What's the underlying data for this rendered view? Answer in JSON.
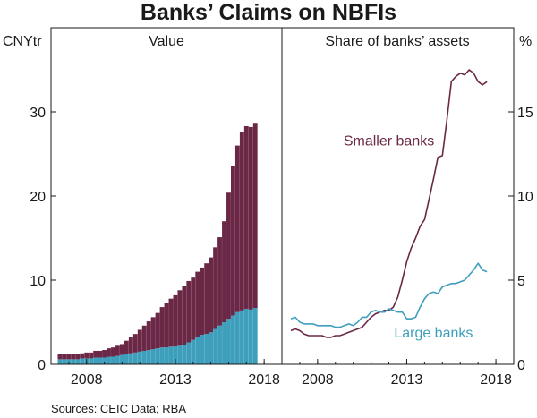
{
  "chart_data": {
    "title": "Banks’ Claims on NBFIs",
    "source": "Sources: CEIC Data; RBA",
    "colors": {
      "large": "#3e9fbd",
      "smaller": "#6b2846",
      "axis": "#1a1a1a"
    },
    "panels": [
      {
        "type": "bar",
        "subtitle": "Value",
        "unit": "CNYtr",
        "ylim": [
          0,
          40
        ],
        "yticks": [
          0,
          10,
          20,
          30
        ],
        "xticks": [
          2008,
          2013,
          2018
        ],
        "xlim": [
          2006,
          2019
        ],
        "x": [
          2006.5,
          2006.75,
          2007.0,
          2007.25,
          2007.5,
          2007.75,
          2008.0,
          2008.25,
          2008.5,
          2008.75,
          2009.0,
          2009.25,
          2009.5,
          2009.75,
          2010.0,
          2010.25,
          2010.5,
          2010.75,
          2011.0,
          2011.25,
          2011.5,
          2011.75,
          2012.0,
          2012.25,
          2012.5,
          2012.75,
          2013.0,
          2013.25,
          2013.5,
          2013.75,
          2014.0,
          2014.25,
          2014.5,
          2014.75,
          2015.0,
          2015.25,
          2015.5,
          2015.75,
          2016.0,
          2016.25,
          2016.5,
          2016.75,
          2017.0,
          2017.25,
          2017.5
        ],
        "series": [
          {
            "name": "Large banks",
            "values": [
              0.6,
              0.6,
              0.6,
              0.6,
              0.6,
              0.7,
              0.7,
              0.7,
              0.8,
              0.8,
              0.8,
              0.9,
              0.9,
              1.0,
              1.1,
              1.2,
              1.3,
              1.4,
              1.5,
              1.6,
              1.7,
              1.8,
              1.9,
              2.0,
              2.0,
              2.1,
              2.1,
              2.2,
              2.3,
              2.6,
              2.9,
              3.2,
              3.5,
              3.6,
              3.8,
              4.2,
              4.6,
              5.0,
              5.4,
              5.8,
              6.2,
              6.4,
              6.6,
              6.5,
              6.7
            ]
          },
          {
            "name": "Smaller banks",
            "values": [
              0.6,
              0.6,
              0.6,
              0.6,
              0.6,
              0.6,
              0.7,
              0.7,
              0.8,
              0.8,
              0.9,
              1.0,
              1.1,
              1.2,
              1.3,
              1.6,
              1.9,
              2.2,
              2.6,
              3.0,
              3.4,
              3.8,
              4.2,
              4.8,
              5.3,
              5.7,
              6.1,
              6.6,
              7.0,
              7.3,
              7.4,
              7.8,
              8.0,
              8.4,
              8.9,
              9.7,
              10.5,
              12.0,
              15.0,
              17.8,
              19.8,
              21.2,
              21.7,
              21.7,
              22.0
            ]
          }
        ]
      },
      {
        "type": "line",
        "subtitle": "Share of banks’ assets",
        "unit": "%",
        "ylim": [
          0,
          20
        ],
        "yticks": [
          0,
          5,
          10,
          15
        ],
        "xticks": [
          2008,
          2013,
          2018
        ],
        "xlim": [
          2006,
          2019
        ],
        "series": [
          {
            "name": "Smaller banks",
            "x": [
              2006.5,
              2006.75,
              2007.0,
              2007.25,
              2007.5,
              2007.75,
              2008.0,
              2008.25,
              2008.5,
              2008.75,
              2009.0,
              2009.25,
              2009.5,
              2009.75,
              2010.0,
              2010.25,
              2010.5,
              2010.75,
              2011.0,
              2011.25,
              2011.5,
              2011.75,
              2012.0,
              2012.25,
              2012.5,
              2012.75,
              2013.0,
              2013.25,
              2013.5,
              2013.75,
              2014.0,
              2014.25,
              2014.5,
              2014.75,
              2015.0,
              2015.25,
              2015.5,
              2015.75,
              2016.0,
              2016.25,
              2016.5,
              2016.75,
              2017.0,
              2017.25,
              2017.5
            ],
            "values": [
              2.0,
              2.1,
              2.0,
              1.8,
              1.7,
              1.7,
              1.7,
              1.7,
              1.6,
              1.6,
              1.7,
              1.7,
              1.8,
              1.9,
              2.0,
              2.1,
              2.2,
              2.5,
              2.8,
              3.0,
              3.1,
              3.2,
              3.2,
              3.4,
              4.0,
              5.0,
              6.1,
              6.9,
              7.5,
              8.2,
              8.6,
              9.8,
              11.0,
              12.3,
              12.4,
              14.5,
              16.8,
              17.1,
              17.3,
              17.2,
              17.5,
              17.3,
              16.8,
              16.6,
              16.8
            ]
          },
          {
            "name": "Large banks",
            "x": [
              2006.5,
              2006.75,
              2007.0,
              2007.25,
              2007.5,
              2007.75,
              2008.0,
              2008.25,
              2008.5,
              2008.75,
              2009.0,
              2009.25,
              2009.5,
              2009.75,
              2010.0,
              2010.25,
              2010.5,
              2010.75,
              2011.0,
              2011.25,
              2011.5,
              2011.75,
              2012.0,
              2012.25,
              2012.5,
              2012.75,
              2013.0,
              2013.25,
              2013.5,
              2013.75,
              2014.0,
              2014.25,
              2014.5,
              2014.75,
              2015.0,
              2015.25,
              2015.5,
              2015.75,
              2016.0,
              2016.25,
              2016.5,
              2016.75,
              2017.0,
              2017.25,
              2017.5
            ],
            "values": [
              2.7,
              2.8,
              2.5,
              2.4,
              2.4,
              2.4,
              2.3,
              2.3,
              2.3,
              2.3,
              2.2,
              2.2,
              2.3,
              2.4,
              2.3,
              2.5,
              2.8,
              2.8,
              3.1,
              3.2,
              3.1,
              3.1,
              3.3,
              3.2,
              3.1,
              3.1,
              2.7,
              2.7,
              2.8,
              3.4,
              3.9,
              4.2,
              4.3,
              4.2,
              4.6,
              4.7,
              4.8,
              4.8,
              4.9,
              5.0,
              5.3,
              5.6,
              6.0,
              5.6,
              5.5
            ]
          }
        ],
        "annotations": [
          {
            "text": "Smaller banks",
            "series": "Smaller banks",
            "x": 2012.0,
            "y": 13.0
          },
          {
            "text": "Large banks",
            "series": "Large banks",
            "x": 2014.5,
            "y": 1.6
          }
        ]
      }
    ]
  }
}
